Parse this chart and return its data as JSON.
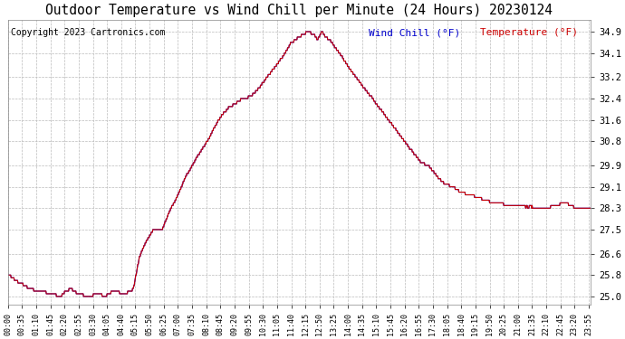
{
  "title": "Outdoor Temperature vs Wind Chill per Minute (24 Hours) 20230124",
  "copyright": "Copyright 2023 Cartronics.com",
  "legend_wind_chill": "Wind Chill (°F)",
  "legend_temperature": "Temperature (°F)",
  "wind_chill_color": "#0000cc",
  "temperature_color": "#cc0000",
  "yticks": [
    25.0,
    25.8,
    26.6,
    27.5,
    28.3,
    29.1,
    29.9,
    30.8,
    31.6,
    32.4,
    33.2,
    34.1,
    34.9
  ],
  "ymin": 24.7,
  "ymax": 35.35,
  "background_color": "#ffffff",
  "grid_color": "#bbbbbb",
  "title_fontsize": 10.5,
  "copyright_fontsize": 7,
  "xtick_interval_minutes": 35,
  "curve_keypoints": [
    [
      0,
      25.8
    ],
    [
      20,
      25.6
    ],
    [
      55,
      25.3
    ],
    [
      100,
      25.1
    ],
    [
      130,
      25.0
    ],
    [
      155,
      25.3
    ],
    [
      175,
      25.1
    ],
    [
      200,
      25.0
    ],
    [
      220,
      25.1
    ],
    [
      240,
      25.0
    ],
    [
      260,
      25.2
    ],
    [
      290,
      25.1
    ],
    [
      310,
      25.3
    ],
    [
      325,
      26.5
    ],
    [
      340,
      27.0
    ],
    [
      360,
      27.5
    ],
    [
      380,
      27.5
    ],
    [
      400,
      28.2
    ],
    [
      420,
      28.8
    ],
    [
      440,
      29.5
    ],
    [
      460,
      30.0
    ],
    [
      480,
      30.5
    ],
    [
      500,
      31.0
    ],
    [
      520,
      31.6
    ],
    [
      540,
      32.0
    ],
    [
      560,
      32.2
    ],
    [
      580,
      32.4
    ],
    [
      600,
      32.5
    ],
    [
      620,
      32.8
    ],
    [
      640,
      33.2
    ],
    [
      660,
      33.6
    ],
    [
      680,
      34.0
    ],
    [
      700,
      34.5
    ],
    [
      720,
      34.7
    ],
    [
      740,
      34.9
    ],
    [
      755,
      34.8
    ],
    [
      765,
      34.6
    ],
    [
      775,
      34.9
    ],
    [
      785,
      34.7
    ],
    [
      800,
      34.5
    ],
    [
      820,
      34.1
    ],
    [
      840,
      33.6
    ],
    [
      860,
      33.2
    ],
    [
      880,
      32.8
    ],
    [
      900,
      32.4
    ],
    [
      920,
      32.0
    ],
    [
      940,
      31.6
    ],
    [
      960,
      31.2
    ],
    [
      980,
      30.8
    ],
    [
      1000,
      30.4
    ],
    [
      1020,
      30.0
    ],
    [
      1040,
      29.9
    ],
    [
      1060,
      29.5
    ],
    [
      1080,
      29.2
    ],
    [
      1100,
      29.1
    ],
    [
      1120,
      28.9
    ],
    [
      1140,
      28.8
    ],
    [
      1160,
      28.7
    ],
    [
      1200,
      28.5
    ],
    [
      1260,
      28.4
    ],
    [
      1320,
      28.3
    ],
    [
      1380,
      28.5
    ],
    [
      1400,
      28.3
    ],
    [
      1439,
      28.3
    ]
  ]
}
